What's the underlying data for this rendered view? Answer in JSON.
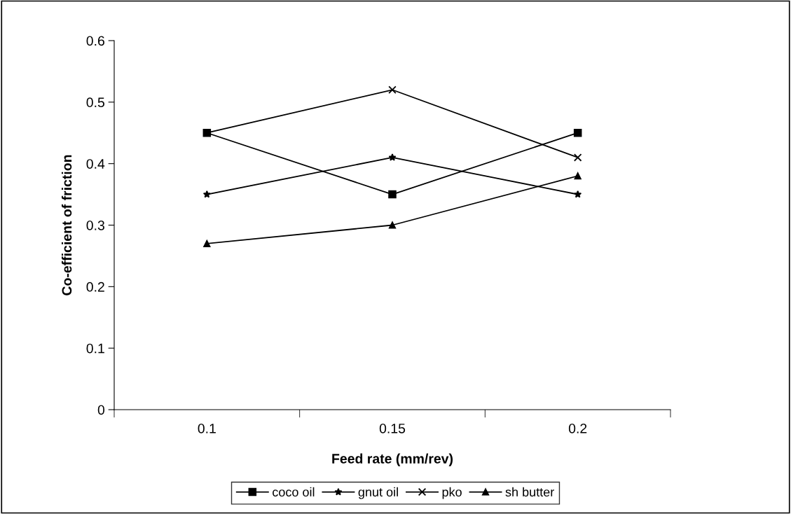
{
  "chart_data": {
    "type": "line",
    "xlabel": "Feed rate (mm/rev)",
    "ylabel": "Co-efficient of friction",
    "categories": [
      "0.1",
      "0.15",
      "0.2"
    ],
    "series": [
      {
        "name": "coco oil",
        "color": "#000000",
        "marker": "square",
        "values": [
          0.45,
          0.35,
          0.45
        ]
      },
      {
        "name": "gnut oil",
        "color": "#000000",
        "marker": "star",
        "values": [
          0.35,
          0.41,
          0.35
        ]
      },
      {
        "name": "pko",
        "color": "#000000",
        "marker": "cross",
        "values": [
          0.45,
          0.52,
          0.41
        ]
      },
      {
        "name": "sh butter",
        "color": "#000000",
        "marker": "triangle",
        "values": [
          0.27,
          0.3,
          0.38
        ]
      }
    ],
    "ylim": [
      0,
      0.6
    ],
    "yticks": [
      0,
      0.1,
      0.2,
      0.3,
      0.4,
      0.5,
      0.6
    ],
    "grid": false,
    "legend": "bottom",
    "line_style": "solid"
  }
}
